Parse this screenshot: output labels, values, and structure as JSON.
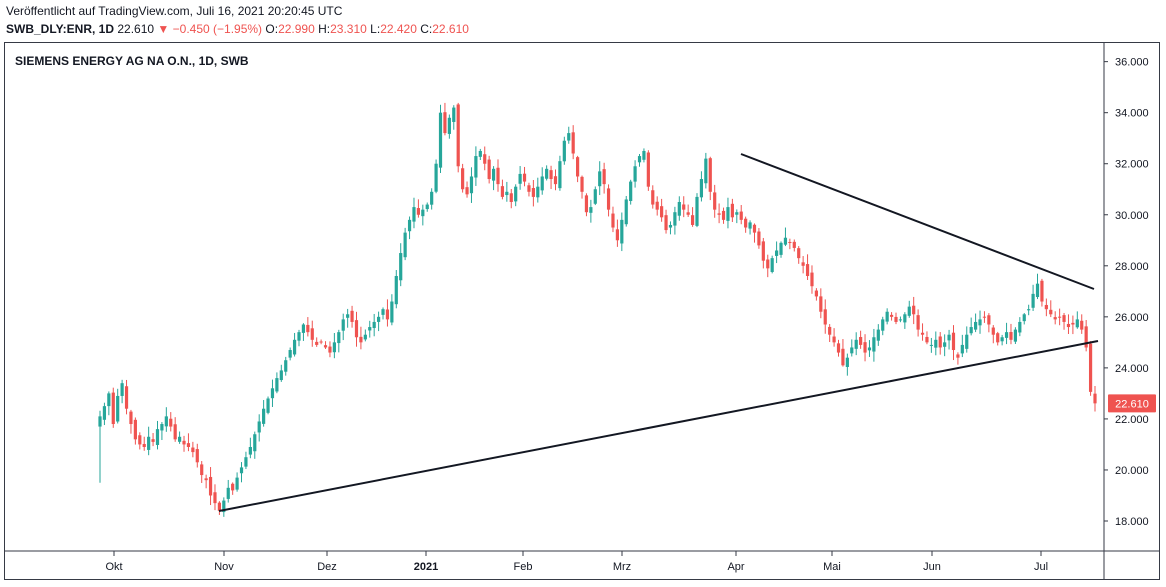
{
  "header": {
    "published": "Veröffentlicht auf TradingView.com, Juli 16, 2021 20:20:45 UTC",
    "symbol": "SWB_DLY:ENR, 1D",
    "last": "22.610",
    "change": "−0.450 (−1.95%)",
    "open_label": "O:",
    "open": "22.990",
    "high_label": "H:",
    "high": "23.310",
    "low_label": "L:",
    "low": "22.420",
    "close_label": "C:",
    "close": "22.610"
  },
  "colors": {
    "up": "#26a69a",
    "down": "#ef5350",
    "line": "#131722"
  },
  "chart_data": {
    "type": "candlestick",
    "title": "SIEMENS ENERGY AG NA O.N., 1D, SWB",
    "ylim": [
      17.2,
      36.6
    ],
    "y_ticks": [
      "18.000",
      "20.000",
      "22.000",
      "24.000",
      "26.000",
      "28.000",
      "30.000",
      "32.000",
      "34.000",
      "36.000"
    ],
    "x_ticks": [
      "Okt",
      "Nov",
      "Dez",
      "2021",
      "Feb",
      "Mrz",
      "Apr",
      "Mai",
      "Jun",
      "Jul"
    ],
    "last_price_label": "22.610",
    "closes": [
      22.1,
      22.5,
      23.0,
      21.8,
      22.9,
      23.4,
      22.4,
      21.8,
      21.2,
      21.0,
      20.9,
      21.3,
      21.1,
      21.6,
      21.8,
      22.1,
      21.7,
      21.2,
      21.3,
      21.0,
      20.9,
      20.7,
      20.3,
      19.8,
      19.6,
      19.0,
      18.7,
      18.4,
      18.8,
      19.3,
      19.2,
      19.7,
      20.1,
      20.5,
      20.9,
      21.4,
      21.9,
      22.4,
      22.8,
      23.2,
      23.6,
      23.9,
      24.3,
      24.7,
      25.1,
      25.4,
      25.7,
      25.4,
      25.1,
      24.9,
      25.0,
      24.8,
      24.6,
      25.0,
      25.4,
      25.9,
      26.1,
      25.8,
      25.2,
      25.0,
      25.3,
      25.6,
      25.8,
      26.0,
      26.3,
      25.9,
      26.6,
      27.6,
      28.5,
      29.3,
      29.8,
      30.3,
      30.0,
      30.2,
      30.4,
      30.9,
      32.0,
      34.0,
      33.2,
      33.8,
      34.2,
      31.9,
      31.0,
      30.8,
      31.5,
      32.3,
      32.5,
      32.0,
      31.4,
      31.8,
      31.2,
      30.7,
      30.9,
      30.5,
      31.1,
      31.6,
      31.3,
      30.9,
      30.7,
      31.1,
      31.5,
      31.8,
      31.4,
      31.2,
      32.1,
      32.9,
      33.2,
      32.4,
      31.5,
      30.9,
      30.1,
      30.3,
      31.0,
      31.7,
      31.2,
      30.2,
      29.5,
      29.0,
      29.8,
      30.6,
      31.3,
      31.9,
      32.3,
      32.5,
      31.1,
      30.4,
      30.2,
      29.9,
      29.4,
      29.6,
      30.1,
      30.5,
      30.2,
      30.0,
      29.6,
      30.7,
      31.4,
      32.2,
      30.9,
      30.2,
      30.0,
      29.8,
      30.3,
      29.9,
      30.1,
      29.8,
      29.5,
      29.7,
      29.3,
      28.8,
      28.2,
      27.9,
      28.3,
      28.6,
      28.9,
      29.1,
      28.9,
      28.7,
      28.3,
      28.0,
      27.6,
      27.2,
      26.8,
      26.2,
      25.7,
      25.3,
      25.0,
      24.6,
      24.1,
      24.4,
      24.8,
      25.1,
      24.9,
      24.6,
      24.8,
      25.2,
      25.5,
      25.9,
      26.2,
      26.0,
      25.8,
      25.9,
      26.1,
      26.4,
      26.1,
      25.5,
      25.3,
      25.0,
      24.9,
      25.1,
      24.8,
      25.0,
      25.3,
      24.7,
      24.4,
      24.9,
      25.3,
      25.6,
      25.8,
      25.9,
      26.0,
      25.7,
      25.3,
      25.0,
      25.2,
      25.4,
      25.1,
      25.5,
      25.8,
      26.1,
      26.3,
      26.9,
      27.3,
      26.6,
      26.3,
      26.1,
      25.9,
      26.0,
      25.8,
      25.6,
      25.7,
      25.9,
      25.5,
      24.8,
      23.06,
      22.61
    ]
  }
}
